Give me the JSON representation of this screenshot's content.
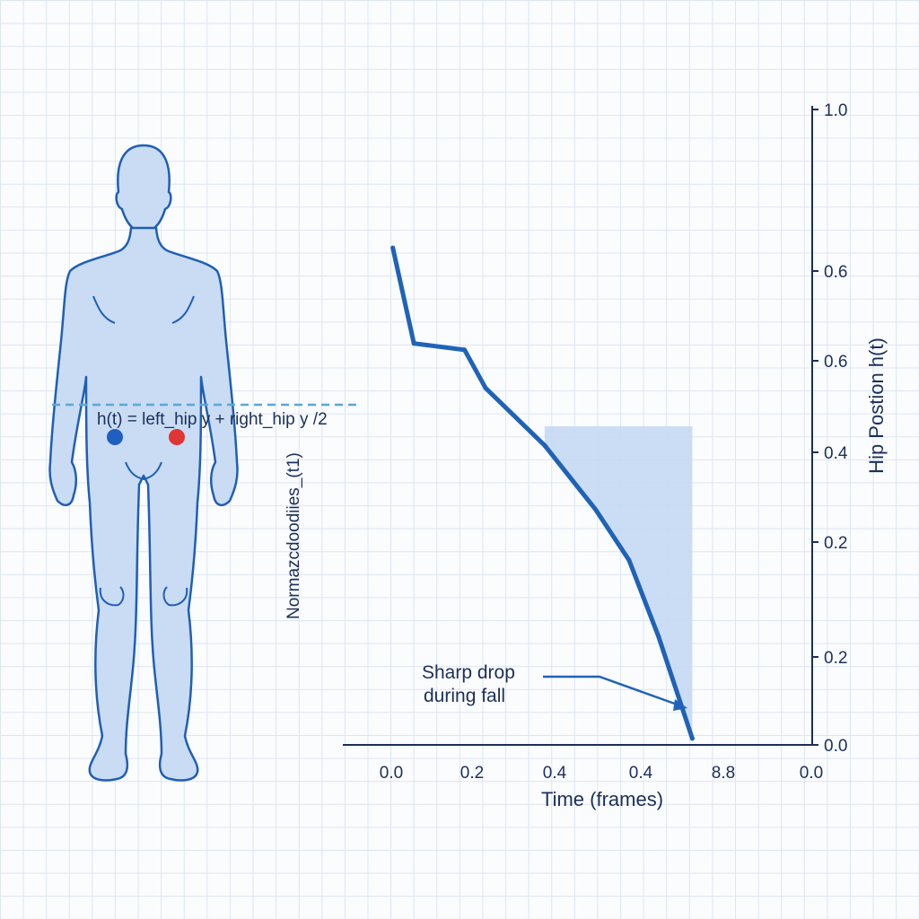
{
  "colors": {
    "outline": "#1f5fb5",
    "body_fill": "#c9dcf4",
    "line": "#1f63b8",
    "area_fill": "#c5d9f3",
    "axis": "#1c2f5a",
    "dashed": "#5aa7d8",
    "left_hip": "#1f5fc0",
    "right_hip": "#e03535"
  },
  "figure": {
    "formula": "h(t) = left_hip  y + right_hip y /2",
    "side_label": "Normazcdoodiies_(t1)",
    "left_hip_marker": "left-hip-dot",
    "right_hip_marker": "right-hip-dot"
  },
  "chart_data": {
    "type": "line",
    "title": "",
    "xlabel": "Time (frames)",
    "ylabel": "Hip Postion h(t)",
    "x_tick_labels": [
      "0.0",
      "0.2",
      "0.4",
      "0.4",
      "8.8",
      "0.0"
    ],
    "y_tick_labels": [
      "0.0",
      "0.2",
      "0.2",
      "0.4",
      "0.6",
      "0.6",
      "1.0"
    ],
    "annotation": {
      "line1": "Sharp drop",
      "line2": "during fall"
    },
    "series": [
      {
        "x": [
          0.01,
          0.06,
          0.18,
          0.23,
          0.37,
          0.49,
          0.57,
          0.64,
          0.72
        ],
        "y": [
          0.78,
          0.63,
          0.62,
          0.56,
          0.47,
          0.37,
          0.29,
          0.17,
          0.01
        ]
      }
    ],
    "shaded_region": {
      "x_start": 0.37,
      "x_end": 0.72,
      "y_top": 0.5
    }
  }
}
